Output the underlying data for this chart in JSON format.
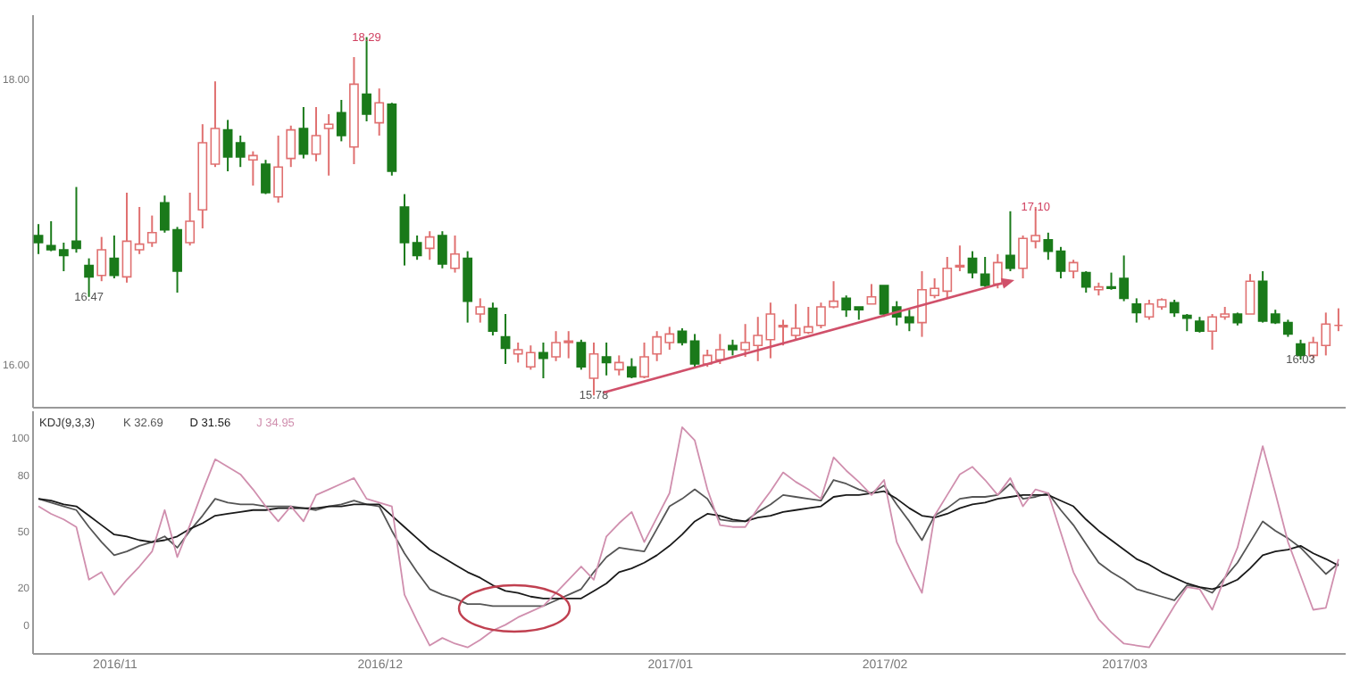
{
  "chart_data": [
    {
      "type": "candlestick",
      "categories": [
        null,
        null,
        null,
        null,
        null,
        null,
        "2016/11",
        null,
        null,
        null,
        null,
        null,
        null,
        null,
        null,
        null,
        null,
        null,
        null,
        null,
        null,
        null,
        null,
        null,
        null,
        null,
        null,
        "2016/12",
        null,
        null,
        null,
        null,
        null,
        null,
        null,
        null,
        null,
        null,
        null,
        null,
        null,
        null,
        null,
        null,
        null,
        null,
        null,
        null,
        null,
        null,
        "2017/01",
        null,
        null,
        null,
        null,
        null,
        null,
        null,
        null,
        null,
        null,
        null,
        null,
        null,
        null,
        null,
        null,
        "2017/02",
        null,
        null,
        null,
        null,
        null,
        null,
        null,
        null,
        null,
        null,
        null,
        null,
        null,
        null,
        null,
        null,
        null,
        null,
        "2017/03",
        null,
        null,
        null,
        null,
        null,
        null,
        null,
        null,
        null,
        null,
        null,
        null,
        null,
        null,
        null,
        null,
        null
      ],
      "ohlc": [
        [
          16.9,
          16.98,
          16.77,
          16.85
        ],
        [
          16.83,
          17.0,
          16.79,
          16.8
        ],
        [
          16.8,
          16.85,
          16.65,
          16.76
        ],
        [
          16.86,
          17.24,
          16.78,
          16.81
        ],
        [
          16.69,
          16.74,
          16.47,
          16.61
        ],
        [
          16.62,
          16.89,
          16.58,
          16.8
        ],
        [
          16.74,
          16.9,
          16.6,
          16.62
        ],
        [
          16.61,
          17.2,
          16.57,
          16.86
        ],
        [
          16.8,
          17.1,
          16.77,
          16.84
        ],
        [
          16.85,
          17.04,
          16.82,
          16.92
        ],
        [
          17.13,
          17.18,
          16.92,
          16.94
        ],
        [
          16.94,
          16.96,
          16.5,
          16.65
        ],
        [
          16.85,
          17.2,
          16.83,
          17.0
        ],
        [
          17.08,
          17.68,
          16.95,
          17.55
        ],
        [
          17.4,
          17.98,
          17.38,
          17.65
        ],
        [
          17.64,
          17.71,
          17.35,
          17.45
        ],
        [
          17.55,
          17.6,
          17.38,
          17.45
        ],
        [
          17.43,
          17.49,
          17.25,
          17.46
        ],
        [
          17.4,
          17.43,
          17.19,
          17.2
        ],
        [
          17.17,
          17.6,
          17.13,
          17.38
        ],
        [
          17.44,
          17.67,
          17.38,
          17.64
        ],
        [
          17.65,
          17.8,
          17.44,
          17.47
        ],
        [
          17.47,
          17.8,
          17.42,
          17.6
        ],
        [
          17.65,
          17.75,
          17.32,
          17.68
        ],
        [
          17.76,
          17.85,
          17.56,
          17.6
        ],
        [
          17.52,
          18.15,
          17.4,
          17.96
        ],
        [
          17.89,
          18.29,
          17.7,
          17.75
        ],
        [
          17.69,
          17.93,
          17.6,
          17.83
        ],
        [
          17.82,
          17.83,
          17.32,
          17.35
        ],
        [
          17.1,
          17.19,
          16.69,
          16.85
        ],
        [
          16.85,
          16.9,
          16.73,
          16.76
        ],
        [
          16.81,
          16.93,
          16.73,
          16.89
        ],
        [
          16.9,
          16.93,
          16.67,
          16.7
        ],
        [
          16.67,
          16.9,
          16.64,
          16.77
        ],
        [
          16.74,
          16.79,
          16.29,
          16.44
        ],
        [
          16.35,
          16.46,
          16.29,
          16.4
        ],
        [
          16.39,
          16.43,
          16.2,
          16.23
        ],
        [
          16.19,
          16.35,
          16.0,
          16.11
        ],
        [
          16.07,
          16.15,
          16.01,
          16.1
        ],
        [
          15.98,
          16.13,
          15.96,
          16.08
        ],
        [
          16.08,
          16.15,
          15.9,
          16.04
        ],
        [
          16.05,
          16.23,
          16.02,
          16.15
        ],
        [
          16.15,
          16.23,
          16.04,
          16.16
        ],
        [
          16.15,
          16.17,
          15.96,
          15.98
        ],
        [
          15.9,
          16.15,
          15.78,
          16.07
        ],
        [
          16.05,
          16.15,
          15.92,
          16.01
        ],
        [
          15.96,
          16.06,
          15.92,
          16.01
        ],
        [
          15.98,
          16.04,
          15.9,
          15.91
        ],
        [
          15.91,
          16.15,
          15.9,
          16.05
        ],
        [
          16.07,
          16.23,
          16.02,
          16.19
        ],
        [
          16.15,
          16.26,
          16.1,
          16.21
        ],
        [
          16.23,
          16.25,
          16.13,
          16.15
        ],
        [
          16.16,
          16.21,
          15.98,
          16.0
        ],
        [
          16.0,
          16.1,
          15.98,
          16.06
        ],
        [
          16.03,
          16.21,
          16.0,
          16.1
        ],
        [
          16.13,
          16.17,
          16.06,
          16.1
        ],
        [
          16.1,
          16.28,
          16.05,
          16.15
        ],
        [
          16.13,
          16.33,
          16.02,
          16.2
        ],
        [
          16.17,
          16.43,
          16.04,
          16.35
        ],
        [
          16.26,
          16.31,
          16.13,
          16.27
        ],
        [
          16.2,
          16.42,
          16.17,
          16.25
        ],
        [
          16.22,
          16.4,
          16.21,
          16.26
        ],
        [
          16.27,
          16.43,
          16.25,
          16.4
        ],
        [
          16.4,
          16.58,
          16.39,
          16.44
        ],
        [
          16.46,
          16.48,
          16.33,
          16.38
        ],
        [
          16.4,
          16.4,
          16.31,
          16.38
        ],
        [
          16.42,
          16.56,
          16.42,
          16.47
        ],
        [
          16.55,
          16.55,
          16.33,
          16.35
        ],
        [
          16.4,
          16.44,
          16.27,
          16.33
        ],
        [
          16.33,
          16.38,
          16.23,
          16.29
        ],
        [
          16.29,
          16.65,
          16.19,
          16.52
        ],
        [
          16.48,
          16.6,
          16.46,
          16.53
        ],
        [
          16.51,
          16.75,
          16.46,
          16.67
        ],
        [
          16.68,
          16.83,
          16.65,
          16.69
        ],
        [
          16.74,
          16.79,
          16.6,
          16.64
        ],
        [
          16.63,
          16.75,
          16.54,
          16.55
        ],
        [
          16.56,
          16.77,
          16.53,
          16.71
        ],
        [
          16.76,
          17.07,
          16.65,
          16.67
        ],
        [
          16.67,
          16.9,
          16.6,
          16.88
        ],
        [
          16.86,
          17.1,
          16.81,
          16.9
        ],
        [
          16.87,
          16.92,
          16.73,
          16.79
        ],
        [
          16.79,
          16.82,
          16.6,
          16.65
        ],
        [
          16.65,
          16.73,
          16.6,
          16.71
        ],
        [
          16.64,
          16.65,
          16.5,
          16.54
        ],
        [
          16.52,
          16.57,
          16.48,
          16.54
        ],
        [
          16.54,
          16.64,
          16.52,
          16.53
        ],
        [
          16.6,
          16.76,
          16.44,
          16.46
        ],
        [
          16.42,
          16.46,
          16.29,
          16.36
        ],
        [
          16.33,
          16.45,
          16.31,
          16.42
        ],
        [
          16.4,
          16.46,
          16.38,
          16.45
        ],
        [
          16.43,
          16.45,
          16.33,
          16.36
        ],
        [
          16.34,
          16.35,
          16.23,
          16.32
        ],
        [
          16.3,
          16.33,
          16.22,
          16.23
        ],
        [
          16.23,
          16.35,
          16.1,
          16.33
        ],
        [
          16.33,
          16.4,
          16.31,
          16.35
        ],
        [
          16.35,
          16.36,
          16.27,
          16.29
        ],
        [
          16.35,
          16.63,
          16.35,
          16.58
        ],
        [
          16.58,
          16.65,
          16.29,
          16.3
        ],
        [
          16.35,
          16.38,
          16.28,
          16.29
        ],
        [
          16.29,
          16.31,
          16.19,
          16.21
        ],
        [
          16.14,
          16.17,
          16.03,
          16.06
        ],
        [
          16.06,
          16.19,
          16.04,
          16.15
        ],
        [
          16.13,
          16.36,
          16.06,
          16.28
        ],
        [
          16.27,
          16.39,
          16.23,
          16.27
        ]
      ],
      "colors": [
        "#1a7a1a",
        "#1a7a1a",
        "#1a7a1a",
        "#1a7a1a",
        "#1a7a1a",
        "#e07070",
        "#1a7a1a",
        "#e07070",
        "#e07070",
        "#e07070",
        "#1a7a1a",
        "#1a7a1a",
        "#e07070",
        "#e07070",
        "#e07070",
        "#1a7a1a",
        "#1a7a1a",
        "#e07070",
        "#1a7a1a",
        "#e07070",
        "#e07070",
        "#1a7a1a",
        "#e07070",
        "#e07070",
        "#1a7a1a",
        "#e07070",
        "#1a7a1a",
        "#e07070",
        "#1a7a1a",
        "#1a7a1a",
        "#1a7a1a",
        "#e07070",
        "#1a7a1a",
        "#e07070",
        "#1a7a1a",
        "#e07070",
        "#1a7a1a",
        "#1a7a1a",
        "#e07070",
        "#e07070",
        "#1a7a1a",
        "#e07070",
        "#e07070",
        "#1a7a1a",
        "#e07070",
        "#1a7a1a",
        "#e07070",
        "#1a7a1a",
        "#e07070",
        "#e07070",
        "#e07070",
        "#1a7a1a",
        "#1a7a1a",
        "#e07070",
        "#e07070",
        "#1a7a1a",
        "#e07070",
        "#e07070",
        "#e07070",
        "#e07070",
        "#e07070",
        "#e07070",
        "#e07070",
        "#e07070",
        "#1a7a1a",
        "#1a7a1a",
        "#e07070",
        "#1a7a1a",
        "#1a7a1a",
        "#1a7a1a",
        "#e07070",
        "#e07070",
        "#e07070",
        "#e07070",
        "#1a7a1a",
        "#1a7a1a",
        "#e07070",
        "#1a7a1a",
        "#e07070",
        "#e07070",
        "#1a7a1a",
        "#1a7a1a",
        "#e07070",
        "#1a7a1a",
        "#e07070",
        "#1a7a1a",
        "#1a7a1a",
        "#1a7a1a",
        "#e07070",
        "#e07070",
        "#1a7a1a",
        "#1a7a1a",
        "#1a7a1a",
        "#e07070",
        "#e07070",
        "#1a7a1a",
        "#e07070",
        "#1a7a1a",
        "#1a7a1a",
        "#1a7a1a",
        "#1a7a1a",
        "#e07070",
        "#e07070",
        "#e07070"
      ],
      "ylim": [
        15.7,
        18.45
      ],
      "yticks": [
        {
          "value": 16,
          "label": "16.00"
        },
        {
          "value": 18,
          "label": "18.00"
        }
      ],
      "tick_labels": "y",
      "annotations": [
        {
          "text": "16.47",
          "y": 16.47
        },
        {
          "text": "18.29",
          "y": 18.29
        },
        {
          "text": "15.78",
          "y": 15.78
        },
        {
          "text": "17.10",
          "y": 17.1
        },
        {
          "text": "16.03",
          "y": 16.03
        }
      ]
    },
    {
      "type": "line",
      "title": "KDJ(9,3,3)",
      "legend": "top left",
      "ylim": [
        -15,
        114
      ],
      "yticks": [
        0,
        20,
        50,
        80,
        100
      ],
      "categories": [
        null,
        null,
        null,
        null,
        null,
        null,
        "2016/11",
        null,
        null,
        null,
        null,
        null,
        null,
        null,
        null,
        null,
        null,
        null,
        null,
        null,
        null,
        null,
        null,
        null,
        null,
        null,
        null,
        "2016/12",
        null,
        null,
        null,
        null,
        null,
        null,
        null,
        null,
        null,
        null,
        null,
        null,
        null,
        null,
        null,
        null,
        null,
        null,
        null,
        null,
        null,
        null,
        "2017/01",
        null,
        null,
        null,
        null,
        null,
        null,
        null,
        null,
        null,
        null,
        null,
        null,
        null,
        null,
        null,
        null,
        "2017/02",
        null,
        null,
        null,
        null,
        null,
        null,
        null,
        null,
        null,
        null,
        null,
        null,
        null,
        null,
        null,
        null,
        null,
        null,
        "2017/03",
        null,
        null,
        null,
        null,
        null,
        null,
        null,
        null,
        null,
        null,
        null,
        null,
        null,
        null,
        null,
        null,
        null
      ],
      "series": [
        {
          "name": "K 32.69",
          "color": "#555555",
          "values": [
            67,
            65,
            63,
            61,
            52,
            44,
            37,
            39,
            42,
            44,
            47,
            41,
            50,
            58,
            67,
            65,
            64,
            64,
            63,
            63,
            63,
            62,
            61,
            63,
            64,
            66,
            64,
            63,
            50,
            38,
            28,
            19,
            16,
            14,
            11,
            11,
            10,
            10,
            10,
            10,
            10,
            13,
            16,
            19,
            28,
            36,
            41,
            40,
            39,
            51,
            63,
            67,
            72,
            67,
            56,
            55,
            55,
            60,
            64,
            69,
            68,
            67,
            66,
            77,
            75,
            72,
            70,
            74,
            64,
            55,
            45,
            58,
            62,
            67,
            68,
            68,
            69,
            75,
            67,
            68,
            70,
            61,
            53,
            43,
            33,
            28,
            24,
            19,
            17,
            15,
            13,
            21,
            20,
            17,
            25,
            33,
            44,
            55,
            50,
            46,
            41,
            34,
            27,
            32.69
          ]
        },
        {
          "name": "D 31.56",
          "color": "#1a1a1a",
          "values": [
            67,
            66,
            64,
            63,
            58,
            53,
            48,
            47,
            45,
            44,
            45,
            47,
            51,
            54,
            58,
            59,
            60,
            61,
            61,
            62,
            62,
            62,
            62,
            63,
            63,
            64,
            64,
            64,
            58,
            52,
            46,
            40,
            36,
            32,
            28,
            25,
            21,
            18,
            17,
            15,
            14,
            14,
            14,
            14,
            18,
            22,
            28,
            30,
            33,
            37,
            42,
            48,
            55,
            59,
            58,
            56,
            55,
            57,
            58,
            60,
            61,
            62,
            63,
            68,
            69,
            69,
            70,
            71,
            67,
            62,
            58,
            57,
            59,
            62,
            64,
            65,
            67,
            68,
            69,
            69,
            69,
            66,
            63,
            56,
            50,
            45,
            40,
            35,
            32,
            28,
            25,
            22,
            20,
            19,
            21,
            24,
            30,
            37,
            39,
            40,
            42,
            38,
            35,
            31.56
          ]
        },
        {
          "name": "J 34.95",
          "color": "#d08fae",
          "values": [
            63,
            59,
            56,
            52,
            24,
            28,
            16,
            24,
            31,
            39,
            61,
            36,
            53,
            71,
            88,
            84,
            80,
            72,
            63,
            55,
            63,
            55,
            69,
            72,
            75,
            78,
            67,
            65,
            63,
            16,
            2,
            -11,
            -7,
            -10,
            -12,
            -8,
            -3,
            0,
            4,
            7,
            10,
            17,
            24,
            31,
            24,
            47,
            54,
            60,
            44,
            57,
            70,
            105,
            98,
            72,
            53,
            52,
            52,
            62,
            71,
            81,
            76,
            72,
            67,
            89,
            82,
            76,
            69,
            77,
            44,
            30,
            17,
            58,
            69,
            80,
            84,
            77,
            69,
            78,
            63,
            72,
            70,
            49,
            28,
            15,
            3,
            -4,
            -10,
            -11,
            -12,
            -1,
            10,
            20,
            19,
            8,
            25,
            41,
            68,
            95,
            70,
            44,
            26,
            8,
            9,
            34.95
          ]
        }
      ]
    }
  ]
}
